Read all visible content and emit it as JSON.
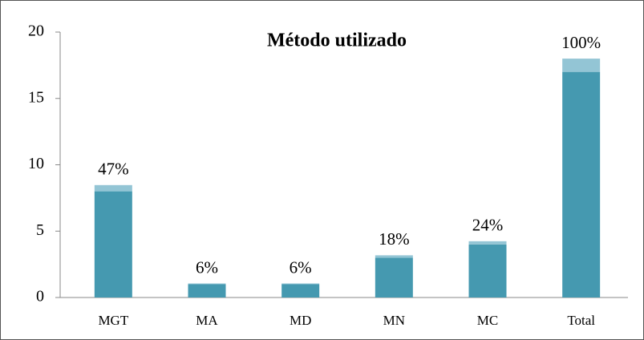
{
  "chart_data": {
    "type": "stacked_bar",
    "title": "Método utilizado",
    "categories": [
      "MGT",
      "MA",
      "MD",
      "MN",
      "MC",
      "Total"
    ],
    "series": [
      {
        "color": "#4599b0",
        "values": [
          8,
          1,
          1,
          3,
          4,
          17
        ]
      },
      {
        "color": "#93c5d5",
        "values": [
          0.47,
          0.06,
          0.06,
          0.18,
          0.24,
          1
        ],
        "value_labels": [
          "47%",
          "6%",
          "6%",
          "18%",
          "24%",
          "100%"
        ]
      }
    ],
    "ylim": [
      0,
      20
    ],
    "yticks": [
      0,
      5,
      10,
      15,
      20
    ],
    "grid": false
  }
}
